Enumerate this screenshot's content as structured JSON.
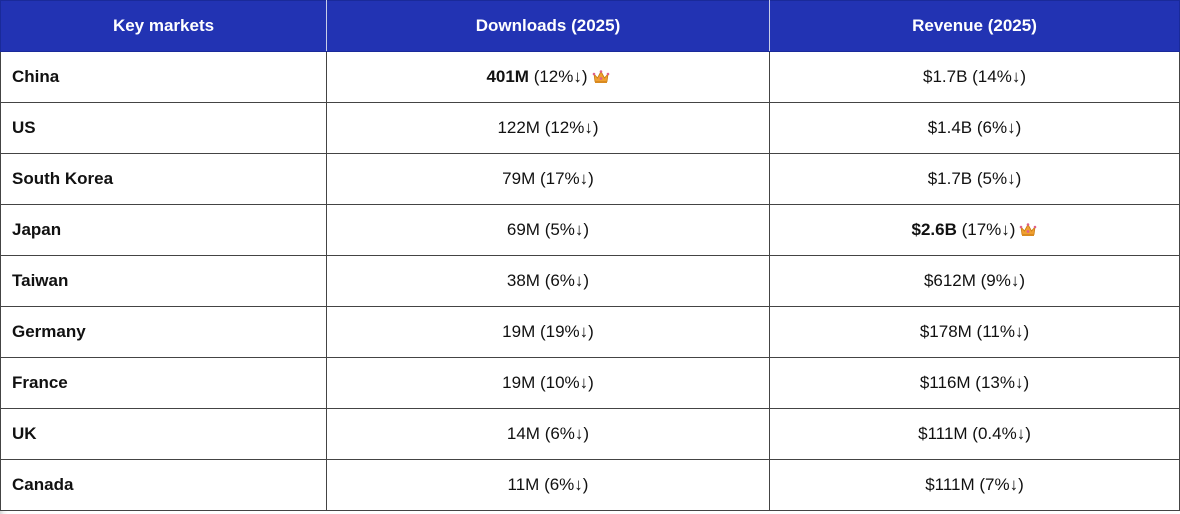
{
  "chart_data": {
    "type": "table",
    "columns": [
      "Key markets",
      "Downloads (2025)",
      "Revenue (2025)"
    ],
    "rows": [
      {
        "market": "China",
        "downloads_value": "401M",
        "downloads_change": " (12%↓)",
        "downloads_top": true,
        "revenue_value": "$1.7B",
        "revenue_change": " (14%↓)",
        "revenue_top": false
      },
      {
        "market": "US",
        "downloads_value": "122M",
        "downloads_change": " (12%↓)",
        "downloads_top": false,
        "revenue_value": "$1.4B",
        "revenue_change": " (6%↓)",
        "revenue_top": false
      },
      {
        "market": "South Korea",
        "downloads_value": "79M",
        "downloads_change": " (17%↓)",
        "downloads_top": false,
        "revenue_value": "$1.7B",
        "revenue_change": " (5%↓)",
        "revenue_top": false
      },
      {
        "market": "Japan",
        "downloads_value": "69M",
        "downloads_change": " (5%↓)",
        "downloads_top": false,
        "revenue_value": "$2.6B",
        "revenue_change": " (17%↓)",
        "revenue_top": true
      },
      {
        "market": "Taiwan",
        "downloads_value": "38M",
        "downloads_change": " (6%↓)",
        "downloads_top": false,
        "revenue_value": "$612M",
        "revenue_change": " (9%↓)",
        "revenue_top": false
      },
      {
        "market": "Germany",
        "downloads_value": "19M",
        "downloads_change": " (19%↓)",
        "downloads_top": false,
        "revenue_value": "$178M",
        "revenue_change": " (11%↓)",
        "revenue_top": false
      },
      {
        "market": "France",
        "downloads_value": "19M",
        "downloads_change": " (10%↓)",
        "downloads_top": false,
        "revenue_value": "$116M",
        "revenue_change": " (13%↓)",
        "revenue_top": false
      },
      {
        "market": "UK",
        "downloads_value": "14M",
        "downloads_change": " (6%↓)",
        "downloads_top": false,
        "revenue_value": "$111M",
        "revenue_change": " (0.4%↓)",
        "revenue_top": false
      },
      {
        "market": "Canada",
        "downloads_value": "11M",
        "downloads_change": " (6%↓)",
        "downloads_top": false,
        "revenue_value": "$111M",
        "revenue_change": " (7%↓)",
        "revenue_top": false
      }
    ],
    "leader_icon": "crown-icon",
    "colors": {
      "header_bg": "#2233b3",
      "header_text": "#ffffff",
      "crown_gold": "#f0a030",
      "crown_pink": "#e0608a"
    }
  }
}
